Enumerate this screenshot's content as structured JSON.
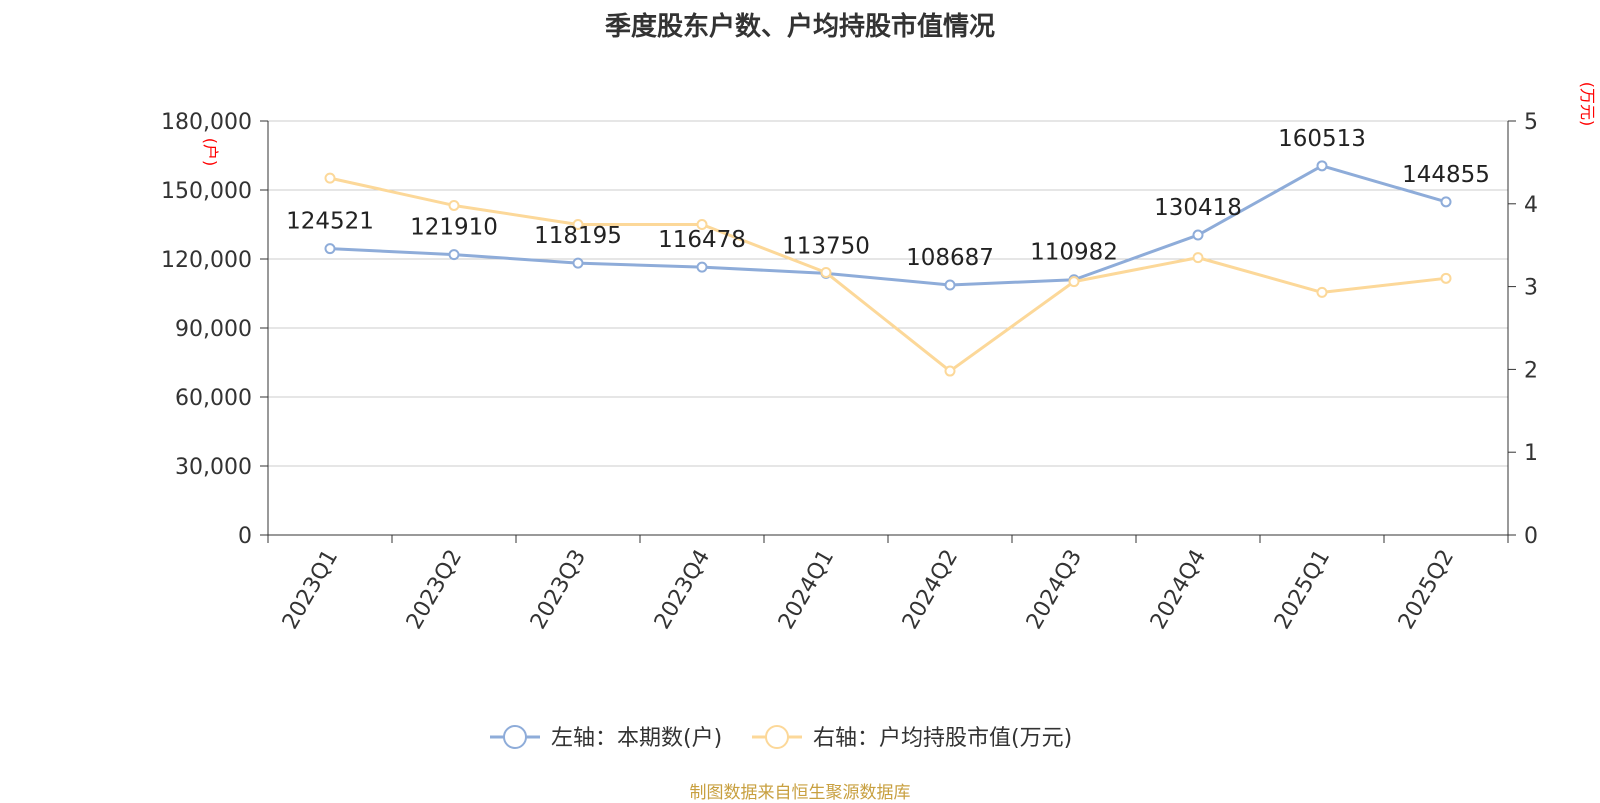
{
  "title": "季度股东户数、户均持股市值情况",
  "source": "制图数据来自恒生聚源数据库",
  "colors": {
    "series_left": "#8eacd9",
    "series_right": "#fcd899",
    "unit_label": "#ff0000",
    "source_text": "#c8a040",
    "grid": "#cccccc",
    "axis": "#333333"
  },
  "chart_data": {
    "type": "line",
    "title": "季度股东户数、户均持股市值情况",
    "categories": [
      "2023Q1",
      "2023Q2",
      "2023Q3",
      "2023Q4",
      "2024Q1",
      "2024Q2",
      "2024Q3",
      "2024Q4",
      "2025Q1",
      "2025Q2"
    ],
    "y_left": {
      "unit": "(户)",
      "ylim": [
        0,
        180000
      ],
      "ticks": [
        0,
        30000,
        60000,
        90000,
        120000,
        150000,
        180000
      ],
      "tick_labels": [
        "0",
        "30,000",
        "60,000",
        "90,000",
        "120,000",
        "150,000",
        "180,000"
      ]
    },
    "y_right": {
      "unit": "(万元)",
      "ylim": [
        0,
        5
      ],
      "ticks": [
        0,
        1,
        2,
        3,
        4,
        5
      ],
      "tick_labels": [
        "0",
        "1",
        "2",
        "3",
        "4",
        "5"
      ]
    },
    "grid": true,
    "legend_position": "bottom-center",
    "series": [
      {
        "name": "左轴：本期数(户)",
        "axis": "left",
        "color": "#8eacd9",
        "values": [
          124521,
          121910,
          118195,
          116478,
          113750,
          108687,
          110982,
          130418,
          160513,
          144855
        ],
        "data_labels": [
          "124521",
          "121910",
          "118195",
          "116478",
          "113750",
          "108687",
          "110982",
          "130418",
          "160513",
          "144855"
        ]
      },
      {
        "name": "右轴：户均持股市值(万元)",
        "axis": "right",
        "color": "#fcd899",
        "values": [
          4.31,
          3.98,
          3.75,
          3.75,
          3.17,
          1.98,
          3.06,
          3.35,
          2.93,
          3.1
        ]
      }
    ]
  }
}
